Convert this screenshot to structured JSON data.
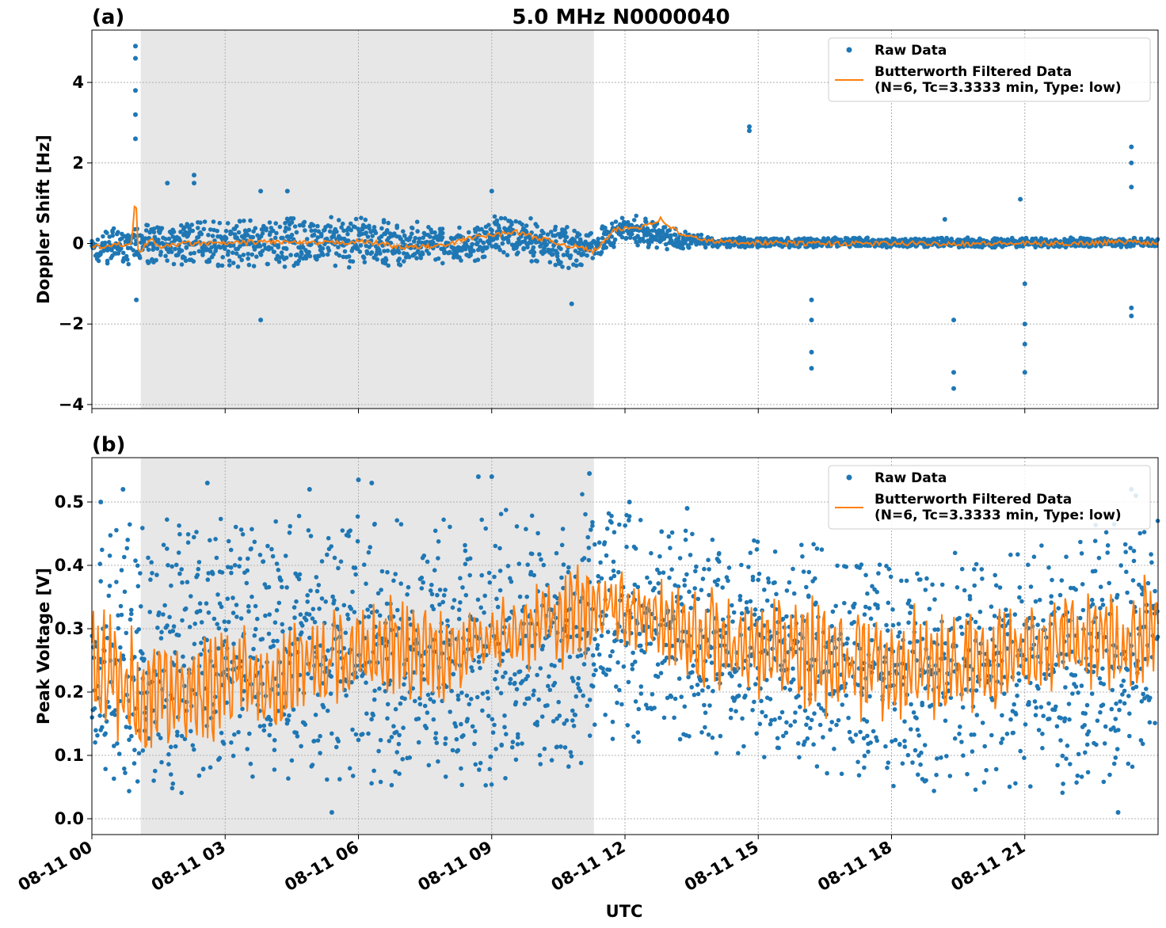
{
  "figure": {
    "title": "5.0 MHz N0000040",
    "xlabel": "UTC"
  },
  "colors": {
    "raw": "#1f77b4",
    "filtered": "#ff7f0e",
    "shade": "#e7e7e7",
    "grid": "#b0b0b0"
  },
  "legend": {
    "raw_label": "Raw Data",
    "filt_label_line1": "Butterworth Filtered Data",
    "filt_label_line2": "(N=6, Tc=3.3333 min, Type: low)",
    "placement": "top-right"
  },
  "chart_data": [
    {
      "panel": "(a)",
      "type": "scatter",
      "ylabel": "Doppler Shift [Hz]",
      "xlim": [
        "08-11 00:00",
        "08-11 24:00"
      ],
      "xticks": [
        "08-11 00",
        "08-11 03",
        "08-11 06",
        "08-11 09",
        "08-11 12",
        "08-11 15",
        "08-11 18",
        "08-11 21"
      ],
      "ylim": [
        -4.1,
        5.3
      ],
      "yticks": [
        -4,
        -2,
        0,
        2,
        4
      ],
      "ytick_labels": [
        "−4",
        "−2",
        "0",
        "2",
        "4"
      ],
      "shaded_interval_hours": [
        1.1,
        11.3
      ],
      "grid": true,
      "series": [
        {
          "name": "Raw Data",
          "kind": "scatter",
          "envelope_hours": [
            0,
            1,
            3,
            6,
            8.5,
            9.2,
            10.8,
            11.3,
            12,
            13,
            14,
            24
          ],
          "envelope_low": [
            -0.6,
            -0.5,
            -0.6,
            -0.6,
            -0.5,
            -0.3,
            -0.7,
            -0.4,
            0.0,
            -0.2,
            -0.1,
            -0.1
          ],
          "envelope_high": [
            0.3,
            0.5,
            0.6,
            0.7,
            0.4,
            0.8,
            0.4,
            0.3,
            0.8,
            0.4,
            0.15,
            0.15
          ],
          "outliers": [
            {
              "x": 0.98,
              "y": 4.9
            },
            {
              "x": 0.98,
              "y": 4.6
            },
            {
              "x": 0.98,
              "y": 3.8
            },
            {
              "x": 0.98,
              "y": 3.2
            },
            {
              "x": 0.98,
              "y": 2.6
            },
            {
              "x": 1.0,
              "y": -1.4
            },
            {
              "x": 1.7,
              "y": 1.5
            },
            {
              "x": 2.3,
              "y": 1.5
            },
            {
              "x": 2.3,
              "y": 1.7
            },
            {
              "x": 3.8,
              "y": -1.9
            },
            {
              "x": 3.8,
              "y": 1.3
            },
            {
              "x": 4.4,
              "y": 1.3
            },
            {
              "x": 9.0,
              "y": 1.3
            },
            {
              "x": 10.8,
              "y": -1.5
            },
            {
              "x": 14.8,
              "y": 2.9
            },
            {
              "x": 14.8,
              "y": 2.8
            },
            {
              "x": 16.2,
              "y": -1.4
            },
            {
              "x": 16.2,
              "y": -1.9
            },
            {
              "x": 16.2,
              "y": -2.7
            },
            {
              "x": 16.2,
              "y": -3.1
            },
            {
              "x": 19.4,
              "y": -1.9
            },
            {
              "x": 19.4,
              "y": -3.2
            },
            {
              "x": 19.4,
              "y": -3.6
            },
            {
              "x": 19.2,
              "y": 0.6
            },
            {
              "x": 20.9,
              "y": 1.1
            },
            {
              "x": 21.0,
              "y": -1.0
            },
            {
              "x": 21.0,
              "y": -2.0
            },
            {
              "x": 21.0,
              "y": -2.5
            },
            {
              "x": 21.0,
              "y": -3.2
            },
            {
              "x": 23.4,
              "y": 2.4
            },
            {
              "x": 23.4,
              "y": 2.0
            },
            {
              "x": 23.4,
              "y": 1.4
            },
            {
              "x": 23.4,
              "y": -1.6
            },
            {
              "x": 23.4,
              "y": -1.8
            }
          ]
        },
        {
          "name": "Butterworth Filtered Data\n(N=6, Tc=3.3333 min, Type: low)",
          "kind": "line",
          "x_hours": [
            0,
            0.5,
            0.9,
            0.98,
            1.05,
            1.3,
            1.6,
            2,
            3,
            4,
            5,
            6,
            6.5,
            7,
            8,
            8.5,
            9,
            9.5,
            10,
            10.5,
            11,
            11.3,
            11.8,
            12.3,
            12.8,
            13.3,
            14,
            16,
            18,
            20,
            22,
            23.4,
            24
          ],
          "y": [
            -0.1,
            -0.05,
            0.0,
            1.3,
            -0.3,
            0.1,
            -0.1,
            0.0,
            0.0,
            0.05,
            0.0,
            0.05,
            0.0,
            -0.1,
            -0.05,
            0.15,
            0.2,
            0.3,
            0.15,
            0.0,
            -0.1,
            -0.2,
            0.35,
            0.4,
            0.6,
            0.2,
            0.05,
            0.0,
            0.0,
            0.0,
            0.0,
            0.05,
            0.0
          ]
        }
      ]
    },
    {
      "panel": "(b)",
      "type": "scatter",
      "ylabel": "Peak Voltage [V]",
      "xlim": [
        "08-11 00:00",
        "08-11 24:00"
      ],
      "xticks": [
        "08-11 00",
        "08-11 03",
        "08-11 06",
        "08-11 09",
        "08-11 12",
        "08-11 15",
        "08-11 18",
        "08-11 21"
      ],
      "ylim": [
        -0.025,
        0.57
      ],
      "yticks": [
        0.0,
        0.1,
        0.2,
        0.3,
        0.4,
        0.5
      ],
      "ytick_labels": [
        "0.0",
        "0.1",
        "0.2",
        "0.3",
        "0.4",
        "0.5"
      ],
      "shaded_interval_hours": [
        1.1,
        11.3
      ],
      "grid": true,
      "series": [
        {
          "name": "Raw Data",
          "kind": "scatter",
          "envelope_hours": [
            0,
            1,
            3,
            6,
            8.5,
            9.5,
            11,
            11.3,
            13,
            16,
            19,
            21,
            23,
            24
          ],
          "envelope_low": [
            0.05,
            0.03,
            0.05,
            0.05,
            0.03,
            0.05,
            0.08,
            0.1,
            0.12,
            0.06,
            0.04,
            0.05,
            0.02,
            0.15
          ],
          "envelope_high": [
            0.45,
            0.48,
            0.48,
            0.48,
            0.47,
            0.5,
            0.52,
            0.5,
            0.47,
            0.44,
            0.42,
            0.44,
            0.47,
            0.48
          ],
          "outliers": [
            {
              "x": 0.2,
              "y": 0.5
            },
            {
              "x": 0.7,
              "y": 0.52
            },
            {
              "x": 2.6,
              "y": 0.53
            },
            {
              "x": 4.9,
              "y": 0.52
            },
            {
              "x": 6.0,
              "y": 0.535
            },
            {
              "x": 6.3,
              "y": 0.53
            },
            {
              "x": 8.7,
              "y": 0.54
            },
            {
              "x": 9.0,
              "y": 0.54
            },
            {
              "x": 11.2,
              "y": 0.545
            },
            {
              "x": 12.1,
              "y": 0.5
            },
            {
              "x": 13.4,
              "y": 0.49
            },
            {
              "x": 5.4,
              "y": 0.01
            },
            {
              "x": 23.1,
              "y": 0.01
            },
            {
              "x": 23.4,
              "y": 0.52
            },
            {
              "x": 23.5,
              "y": 0.51
            }
          ]
        },
        {
          "name": "Butterworth Filtered Data\n(N=6, Tc=3.3333 min, Type: low)",
          "kind": "line",
          "mean_hours": [
            0,
            1,
            2,
            3,
            4,
            5,
            6,
            7,
            8,
            8.5,
            9,
            10,
            11,
            11.3,
            12,
            13,
            14,
            16,
            18,
            20,
            22,
            24
          ],
          "mean": [
            0.25,
            0.2,
            0.19,
            0.22,
            0.22,
            0.24,
            0.26,
            0.27,
            0.25,
            0.28,
            0.29,
            0.3,
            0.32,
            0.34,
            0.33,
            0.3,
            0.29,
            0.26,
            0.24,
            0.25,
            0.28,
            0.29
          ],
          "amplitude": [
            0.1,
            0.1,
            0.09,
            0.1,
            0.09,
            0.09,
            0.09,
            0.09,
            0.08,
            0.06,
            0.06,
            0.08,
            0.1,
            0.05,
            0.07,
            0.08,
            0.09,
            0.1,
            0.1,
            0.09,
            0.08,
            0.1
          ]
        }
      ]
    }
  ]
}
